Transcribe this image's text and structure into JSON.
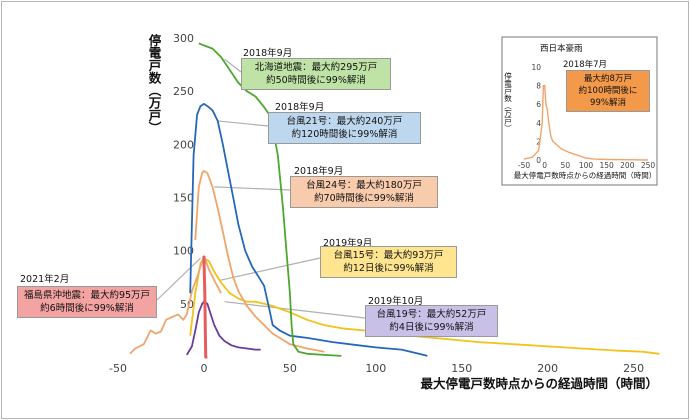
{
  "chart_data": {
    "type": "line",
    "ylabel": "停電戸数（万戸）",
    "xlabel": "最大停電戸数時点からの経過時間（時間）",
    "xlim": [
      -50,
      270
    ],
    "ylim": [
      0,
      300
    ],
    "xticks": [
      -50,
      0,
      50,
      100,
      150,
      200,
      250
    ],
    "yticks": [
      0,
      50,
      100,
      150,
      200,
      250,
      300
    ],
    "grid": false,
    "series": [
      {
        "key": "hokkaido",
        "color": "#4ea72e",
        "points": [
          [
            -3,
            295
          ],
          [
            0,
            293
          ],
          [
            5,
            290
          ],
          [
            10,
            282
          ],
          [
            15,
            270
          ],
          [
            20,
            258
          ],
          [
            25,
            250
          ],
          [
            30,
            245
          ],
          [
            35,
            235
          ],
          [
            38,
            228
          ],
          [
            40,
            215
          ],
          [
            43,
            190
          ],
          [
            46,
            140
          ],
          [
            48,
            100
          ],
          [
            50,
            60
          ],
          [
            51,
            30
          ],
          [
            52,
            12
          ],
          [
            55,
            5
          ],
          [
            60,
            3
          ],
          [
            70,
            2
          ],
          [
            80,
            1
          ]
        ]
      },
      {
        "key": "jebi",
        "color": "#2667b8",
        "points": [
          [
            -8,
            60
          ],
          [
            -6,
            190
          ],
          [
            -4,
            228
          ],
          [
            -2,
            236
          ],
          [
            0,
            238
          ],
          [
            2,
            236
          ],
          [
            5,
            232
          ],
          [
            8,
            222
          ],
          [
            11,
            200
          ],
          [
            14,
            175
          ],
          [
            17,
            150
          ],
          [
            20,
            125
          ],
          [
            24,
            100
          ],
          [
            28,
            85
          ],
          [
            32,
            75
          ],
          [
            35,
            67
          ],
          [
            38,
            45
          ],
          [
            40,
            30
          ],
          [
            44,
            25
          ],
          [
            50,
            20
          ],
          [
            60,
            18
          ],
          [
            75,
            14
          ],
          [
            90,
            11
          ],
          [
            100,
            9
          ],
          [
            115,
            7
          ],
          [
            125,
            3
          ],
          [
            130,
            1
          ]
        ]
      },
      {
        "key": "trami",
        "color": "#f1a46a",
        "points": [
          [
            -5,
            110
          ],
          [
            -3,
            160
          ],
          [
            -1,
            173
          ],
          [
            0,
            175
          ],
          [
            2,
            173
          ],
          [
            5,
            160
          ],
          [
            8,
            140
          ],
          [
            11,
            118
          ],
          [
            14,
            95
          ],
          [
            17,
            75
          ],
          [
            20,
            62
          ],
          [
            25,
            48
          ],
          [
            30,
            38
          ],
          [
            35,
            30
          ],
          [
            40,
            22
          ],
          [
            45,
            17
          ],
          [
            50,
            12
          ],
          [
            60,
            8
          ],
          [
            70,
            5
          ]
        ]
      },
      {
        "key": "faxai",
        "color": "#f3c11a",
        "points": [
          [
            -8,
            20
          ],
          [
            -5,
            60
          ],
          [
            -2,
            88
          ],
          [
            0,
            93
          ],
          [
            3,
            90
          ],
          [
            6,
            80
          ],
          [
            10,
            70
          ],
          [
            15,
            60
          ],
          [
            20,
            55
          ],
          [
            25,
            52
          ],
          [
            30,
            52
          ],
          [
            35,
            50
          ],
          [
            40,
            48
          ],
          [
            50,
            42
          ],
          [
            60,
            35
          ],
          [
            70,
            30
          ],
          [
            80,
            27
          ],
          [
            100,
            24
          ],
          [
            120,
            20
          ],
          [
            140,
            17
          ],
          [
            160,
            14
          ],
          [
            180,
            12
          ],
          [
            200,
            10
          ],
          [
            220,
            8
          ],
          [
            240,
            6
          ],
          [
            255,
            5
          ],
          [
            265,
            3
          ]
        ]
      },
      {
        "key": "hagibis",
        "color": "#6a3d9a",
        "points": [
          [
            -10,
            2
          ],
          [
            -7,
            10
          ],
          [
            -5,
            25
          ],
          [
            -3,
            42
          ],
          [
            -1,
            50
          ],
          [
            0,
            52
          ],
          [
            2,
            50
          ],
          [
            4,
            40
          ],
          [
            6,
            30
          ],
          [
            9,
            20
          ],
          [
            12,
            15
          ],
          [
            16,
            11
          ],
          [
            20,
            9
          ],
          [
            25,
            8
          ],
          [
            30,
            7
          ],
          [
            33,
            7
          ]
        ]
      },
      {
        "key": "fukushima",
        "color": "#e85c5c",
        "points": [
          [
            0,
            95
          ],
          [
            0.5,
            60
          ],
          [
            1,
            0
          ],
          [
            2,
            0
          ]
        ]
      },
      {
        "key": "baseline",
        "color": "#f0a470",
        "points": [
          [
            -43,
            3
          ],
          [
            -40,
            8
          ],
          [
            -35,
            12
          ],
          [
            -31,
            25
          ],
          [
            -28,
            22
          ],
          [
            -25,
            24
          ],
          [
            -22,
            35
          ],
          [
            -18,
            38
          ],
          [
            -15,
            40
          ],
          [
            -12,
            35
          ],
          [
            -10,
            40
          ],
          [
            -7,
            62
          ],
          [
            -4,
            75
          ],
          [
            -2,
            85
          ],
          [
            0,
            95
          ],
          [
            3,
            82
          ],
          [
            6,
            72
          ],
          [
            10,
            60
          ]
        ]
      }
    ],
    "inset": {
      "title": "西日本豪雨",
      "ylabel": "停電戸数（万戸）",
      "xlabel": "最大停電戸数時点からの経過時間（時間）",
      "xticks": [
        -50,
        0,
        50,
        100,
        150,
        200,
        250
      ],
      "yticks": [
        0,
        2,
        4,
        6,
        8,
        10
      ],
      "color": "#f1a46a",
      "points": [
        [
          -50,
          0.1
        ],
        [
          -30,
          0.3
        ],
        [
          -15,
          1.0
        ],
        [
          -10,
          2.5
        ],
        [
          -6,
          4
        ],
        [
          -3,
          8
        ],
        [
          0,
          8
        ],
        [
          3,
          6
        ],
        [
          6,
          5.5
        ],
        [
          10,
          4
        ],
        [
          15,
          2.5
        ],
        [
          20,
          2
        ],
        [
          30,
          1.6
        ],
        [
          40,
          1.2
        ],
        [
          60,
          0.8
        ],
        [
          80,
          0.5
        ],
        [
          100,
          0.2
        ],
        [
          120,
          0.1
        ],
        [
          150,
          0.05
        ],
        [
          250,
          0
        ]
      ],
      "note_date": "2018年7月",
      "note_line1": "最大約8万戸",
      "note_line2": "約100時間後に99%解消"
    }
  },
  "annotations": {
    "hokkaido": {
      "date": "2018年9月",
      "line1": "北海道地震：最大約295万戸",
      "line2": "約50時間後に99%解消"
    },
    "jebi": {
      "date": "2018年9月",
      "line1": "台風21号：最大約240万戸",
      "line2": "約120時間後に99%解消"
    },
    "trami": {
      "date": "2018年9月",
      "line1": "台風24号：最大約180万戸",
      "line2": "約70時間後に99%解消"
    },
    "faxai": {
      "date": "2019年9月",
      "line1": "台風15号：最大約93万戸",
      "line2": "約12日後に99%解消"
    },
    "hagibis": {
      "date": "2019年10月",
      "line1": "台風19号：最大約52万戸",
      "line2": "約4日後に99%解消"
    },
    "fukushima": {
      "date": "2021年2月",
      "line1": "福島県沖地震：最大約95万戸",
      "line2": "約6時間後に99%解消"
    }
  },
  "colors": {
    "hokkaido_box": "#bfe3a6",
    "jebi_box": "#bdd7ee",
    "trami_box": "#f8cbad",
    "faxai_box": "#ffe58f",
    "hagibis_box": "#c9c0e8",
    "fukushima_box": "#f4a3a3",
    "inset_note": "#f39a4a"
  }
}
